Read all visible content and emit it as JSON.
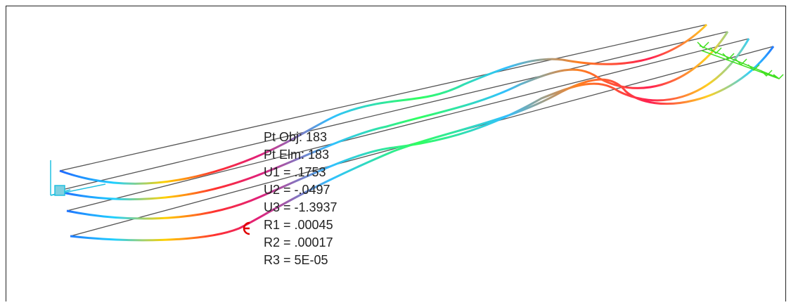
{
  "tooltip": {
    "lines": [
      "Pt Obj: 183",
      "Pt Elm: 183",
      "U1 =  .1753",
      "U2 = -.0497",
      "U3 = -1.3937",
      "R1 =  .00045",
      "R2 =  .00017",
      "R3 =  5E-05"
    ]
  }
}
